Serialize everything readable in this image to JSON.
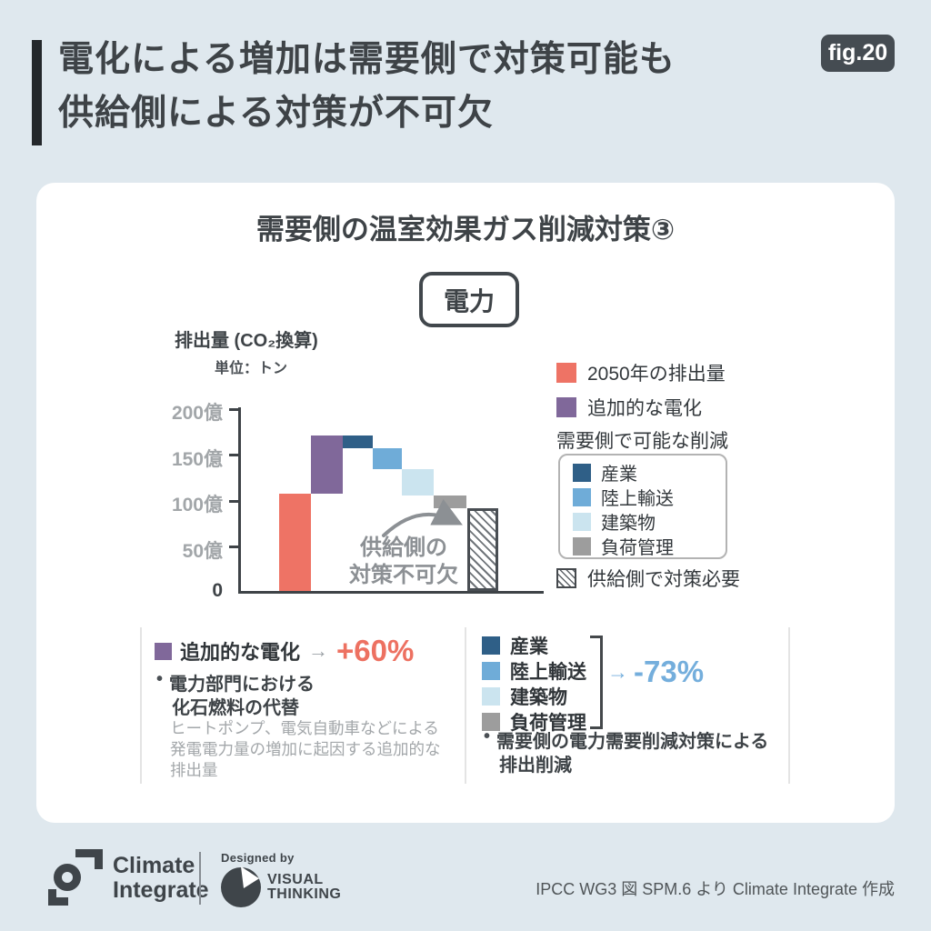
{
  "header": {
    "fig_label": "fig.20",
    "title_line1": "電化による増加は需要側で対策可能も",
    "title_line2": "供給側による対策が不可欠"
  },
  "card": {
    "title": "需要側の温室効果ガス削減対策③",
    "category": "電力"
  },
  "chart": {
    "axis_title": "排出量 (CO₂換算)",
    "unit_label": "単位：トン",
    "y_ticks": [
      "200億",
      "150億",
      "100億",
      "50億",
      "0"
    ],
    "annotation_line1": "供給側の",
    "annotation_line2": "対策不可欠"
  },
  "chart_data": {
    "type": "waterfall",
    "title": "需要側の温室効果ガス削減対策③（電力）",
    "ylabel": "排出量 (CO₂換算)",
    "unit": "億トン",
    "ylim": [
      0,
      200
    ],
    "y_tick_values": [
      0,
      50,
      100,
      150,
      200
    ],
    "grid": false,
    "steps": [
      {
        "label": "2050年の排出量",
        "kind": "total",
        "start": 0,
        "end": 105,
        "color": "#EE7365"
      },
      {
        "label": "追加的な電化",
        "kind": "increase",
        "start": 105,
        "end": 168,
        "color": "#80689A"
      },
      {
        "label": "産業",
        "kind": "decrease",
        "start": 168,
        "end": 155,
        "color": "#2F5F87"
      },
      {
        "label": "陸上輸送",
        "kind": "decrease",
        "start": 155,
        "end": 132,
        "color": "#6FACD8"
      },
      {
        "label": "建築物",
        "kind": "decrease",
        "start": 132,
        "end": 103,
        "color": "#CBE4EF"
      },
      {
        "label": "負荷管理",
        "kind": "decrease",
        "start": 103,
        "end": 90,
        "color": "#9D9D9D"
      },
      {
        "label": "供給側で対策必要",
        "kind": "remainder",
        "start": 0,
        "end": 90,
        "color": "hatched"
      }
    ],
    "annotation": "供給側の対策不可欠",
    "legend_position": "right"
  },
  "legend": {
    "item_2050": "2050年の排出量",
    "item_electrification": "追加的な電化",
    "group_title": "需要側で可能な削減",
    "group_items": [
      {
        "label": "産業"
      },
      {
        "label": "陸上輸送"
      },
      {
        "label": "建築物"
      },
      {
        "label": "負荷管理"
      }
    ],
    "hatched_label": "供給側で対策必要"
  },
  "panel_left": {
    "swatch_label": "追加的な電化",
    "arrow": "→",
    "value": "+60%",
    "bullet": "•",
    "bullet_line1": "電力部門における",
    "bullet_line2": "化石燃料の代替",
    "note_line1": "ヒートポンプ、電気自動車などによる",
    "note_line2": "発電電力量の増加に起因する追加的な",
    "note_line3": "排出量"
  },
  "panel_right": {
    "items": [
      {
        "label": "産業"
      },
      {
        "label": "陸上輸送"
      },
      {
        "label": "建築物"
      },
      {
        "label": "負荷管理"
      }
    ],
    "arrow": "→",
    "value": "-73%",
    "bullet": "•",
    "bullet_line1": "需要側の電力需要削減対策による",
    "bullet_line2": "排出削減"
  },
  "footer": {
    "brand_line1": "Climate",
    "brand_line2": "Integrate",
    "designed_by": "Designed by",
    "designer_line1": "VISUAL",
    "designer_line2": "THINKING",
    "attribution": "IPCC WG3 図 SPM.6 より Climate Integrate 作成"
  },
  "colors": {
    "background": "#DFE8EE",
    "card": "#FFFFFF",
    "ink": "#3E4347",
    "badge_bg": "#454C52",
    "emission_2050": "#EE7365",
    "electrification": "#80689A",
    "industry": "#2F5F87",
    "land_transport": "#6FACD8",
    "buildings": "#CBE4EF",
    "load_management": "#9D9D9D",
    "axis_gray": "#A2A6A9",
    "annotation_gray": "#8C9094",
    "value_plus": "#ED7161",
    "value_minus": "#74AEDC"
  }
}
